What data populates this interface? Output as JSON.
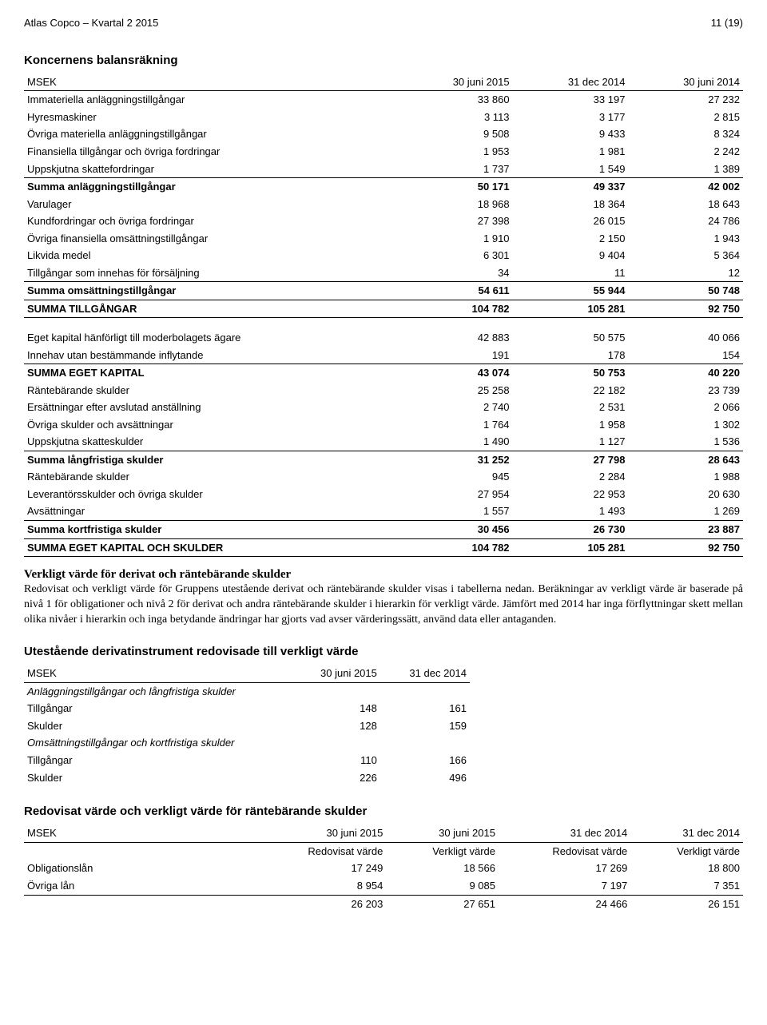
{
  "header": {
    "left": "Atlas Copco – Kvartal 2 2015",
    "right": "11 (19)"
  },
  "balance": {
    "title": "Koncernens balansräkning",
    "cols": [
      "MSEK",
      "30 juni 2015",
      "31 dec 2014",
      "30 juni 2014"
    ],
    "rows": [
      {
        "c": [
          "Immateriella anläggningstillgångar",
          "33 860",
          "33 197",
          "27 232"
        ]
      },
      {
        "c": [
          "Hyresmaskiner",
          "3 113",
          "3 177",
          "2 815"
        ]
      },
      {
        "c": [
          "Övriga materiella anläggningstillgångar",
          "9 508",
          "9 433",
          "8 324"
        ]
      },
      {
        "c": [
          "Finansiella tillgångar och övriga fordringar",
          "1 953",
          "1 981",
          "2 242"
        ]
      },
      {
        "c": [
          "Uppskjutna skattefordringar",
          "1 737",
          "1 549",
          "1 389"
        ]
      },
      {
        "c": [
          "Summa anläggningstillgångar",
          "50 171",
          "49 337",
          "42 002"
        ],
        "cls": "subtotal-row"
      },
      {
        "c": [
          "Varulager",
          "18 968",
          "18 364",
          "18 643"
        ]
      },
      {
        "c": [
          "Kundfordringar och övriga fordringar",
          "27 398",
          "26 015",
          "24 786"
        ]
      },
      {
        "c": [
          "Övriga finansiella omsättningstillgångar",
          "1 910",
          "2 150",
          "1 943"
        ]
      },
      {
        "c": [
          "Likvida medel",
          "6 301",
          "9 404",
          "5 364"
        ]
      },
      {
        "c": [
          "Tillgångar som innehas för försäljning",
          "34",
          "11",
          "12"
        ]
      },
      {
        "c": [
          "Summa omsättningstillgångar",
          "54 611",
          "55 944",
          "50 748"
        ],
        "cls": "subtotal-row"
      },
      {
        "c": [
          "SUMMA TILLGÅNGAR",
          "104 782",
          "105 281",
          "92 750"
        ],
        "cls": "total-row"
      },
      {
        "gap": true
      },
      {
        "c": [
          "Eget kapital hänförligt till moderbolagets ägare",
          "42 883",
          "50 575",
          "40 066"
        ]
      },
      {
        "c": [
          "Innehav utan bestämmande inflytande",
          "191",
          "178",
          "154"
        ]
      },
      {
        "c": [
          "SUMMA EGET KAPITAL",
          "43 074",
          "50 753",
          "40 220"
        ],
        "cls": "subtotal-row"
      },
      {
        "c": [
          "Räntebärande skulder",
          "25 258",
          "22 182",
          "23 739"
        ]
      },
      {
        "c": [
          "Ersättningar efter avslutad anställning",
          "2 740",
          "2 531",
          "2 066"
        ]
      },
      {
        "c": [
          "Övriga skulder och avsättningar",
          "1 764",
          "1 958",
          "1 302"
        ]
      },
      {
        "c": [
          "Uppskjutna skatteskulder",
          "1 490",
          "1 127",
          "1 536"
        ]
      },
      {
        "c": [
          "Summa långfristiga skulder",
          "31 252",
          "27 798",
          "28 643"
        ],
        "cls": "subtotal-row"
      },
      {
        "c": [
          "Räntebärande skulder",
          "945",
          "2 284",
          "1 988"
        ]
      },
      {
        "c": [
          "Leverantörsskulder och övriga skulder",
          "27 954",
          "22 953",
          "20 630"
        ]
      },
      {
        "c": [
          "Avsättningar",
          "1 557",
          "1 493",
          "1 269"
        ]
      },
      {
        "c": [
          "Summa kortfristiga skulder",
          "30 456",
          "26 730",
          "23 887"
        ],
        "cls": "subtotal-row"
      },
      {
        "c": [
          "SUMMA EGET KAPITAL OCH SKULDER",
          "104 782",
          "105 281",
          "92 750"
        ],
        "cls": "total-row"
      }
    ]
  },
  "fv_section": {
    "heading": "Verkligt värde för derivat och räntebärande skulder",
    "text": "Redovisat och verkligt värde för Gruppens utestående derivat och räntebärande skulder visas i tabellerna nedan. Beräkningar av verkligt värde är baserade på nivå 1 för obligationer och nivå 2 för derivat och andra räntebärande skulder i hierarkin för verkligt värde. Jämfört med 2014 har inga förflyttningar skett mellan olika nivåer i hierarkin och inga betydande ändringar har gjorts vad avser värderingssätt, använd data eller antaganden."
  },
  "derivatives": {
    "title": "Utestående derivatinstrument redovisade till verkligt värde",
    "cols": [
      "MSEK",
      "30 juni 2015",
      "31 dec 2014"
    ],
    "rows": [
      {
        "c": [
          "Anläggningstillgångar och långfristiga skulder",
          "",
          ""
        ],
        "cls": "italic"
      },
      {
        "c": [
          "Tillgångar",
          "148",
          "161"
        ]
      },
      {
        "c": [
          "Skulder",
          "128",
          "159"
        ]
      },
      {
        "c": [
          "Omsättningstillgångar och kortfristiga skulder",
          "",
          ""
        ],
        "cls": "italic"
      },
      {
        "c": [
          "Tillgångar",
          "110",
          "166"
        ]
      },
      {
        "c": [
          "Skulder",
          "226",
          "496"
        ]
      }
    ]
  },
  "debt": {
    "title": "Redovisat värde och verkligt värde för räntebärande skulder",
    "cols": [
      "MSEK",
      "30 juni 2015",
      "30 juni 2015",
      "31 dec 2014",
      "31 dec 2014"
    ],
    "subcols": [
      "",
      "Redovisat värde",
      "Verkligt värde",
      "Redovisat värde",
      "Verkligt värde"
    ],
    "rows": [
      {
        "c": [
          "Obligationslån",
          "17 249",
          "18 566",
          "17 269",
          "18 800"
        ]
      },
      {
        "c": [
          "Övriga lån",
          "8 954",
          "9 085",
          "7 197",
          "7 351"
        ]
      },
      {
        "c": [
          "",
          "26 203",
          "27 651",
          "24 466",
          "26 151"
        ],
        "cls": "sum-border"
      }
    ]
  }
}
